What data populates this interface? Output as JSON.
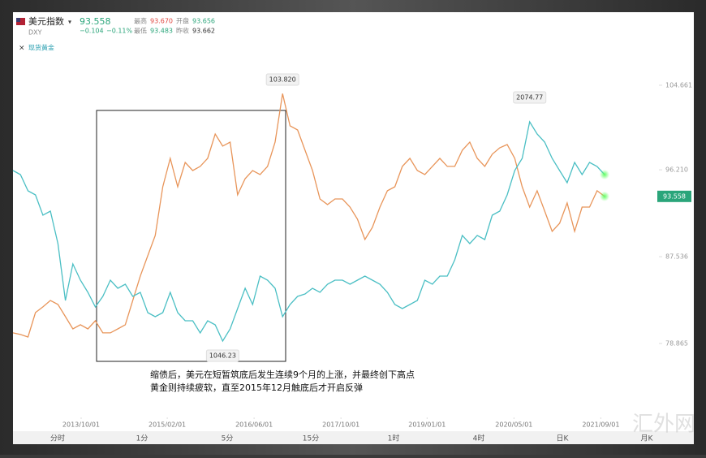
{
  "header": {
    "symbol_code": "DXY",
    "price": "93.558",
    "change": "−0.104",
    "change_pct": "−0.11%",
    "high_label": "最高",
    "high": "93.670",
    "open_label": "开盘",
    "open": "93.656",
    "low_label": "最低",
    "low": "93.483",
    "prev_label": "昨收",
    "prev": "93.662"
  },
  "chart_data": {
    "type": "line",
    "xlim": [
      0,
      79
    ],
    "xticks": [
      {
        "value": 9.1,
        "label": "2013/10/01"
      },
      {
        "value": 20.6,
        "label": "2015/02/01"
      },
      {
        "value": 32.2,
        "label": "2016/06/01"
      },
      {
        "value": 43.8,
        "label": "2017/10/01"
      },
      {
        "value": 55.3,
        "label": "2019/01/01"
      },
      {
        "value": 66.9,
        "label": "2020/05/01"
      },
      {
        "value": 78.5,
        "label": "2021/09/01"
      }
    ],
    "ylim": [
      71.8,
      105.47
    ],
    "yticks": [
      104.661,
      {
        "value": 96.21,
        "label": "96.210"
      },
      87.536,
      78.865
    ],
    "y2lim": [
      703.4,
      2284.3
    ],
    "series": [
      {
        "name": "美元指数",
        "color": "#e8955a",
        "values": [
          79.92,
          79.76,
          79.51,
          81.95,
          82.52,
          83.16,
          82.76,
          81.54,
          80.32,
          80.73,
          80.32,
          81.13,
          79.92,
          79.92,
          80.32,
          80.73,
          83.16,
          85.6,
          87.63,
          89.65,
          94.52,
          97.36,
          94.52,
          96.95,
          96.14,
          96.55,
          97.36,
          99.79,
          98.58,
          98.98,
          93.71,
          95.33,
          96.14,
          95.74,
          96.55,
          98.98,
          103.82,
          100.6,
          100.2,
          98.17,
          96.14,
          93.3,
          92.74,
          93.3,
          93.3,
          92.49,
          91.28,
          89.25,
          90.46,
          92.49,
          94.12,
          94.52,
          96.55,
          97.36,
          96.14,
          95.74,
          96.55,
          97.36,
          96.55,
          96.55,
          98.17,
          98.98,
          97.36,
          96.55,
          97.77,
          98.41,
          98.74,
          97.36,
          94.52,
          92.49,
          94.12,
          92.09,
          90.06,
          90.87,
          92.9,
          90.06,
          92.49,
          92.49,
          94.12,
          93.558
        ]
      },
      {
        "name": "现货黄金",
        "color": "#4bbfc4",
        "axis": "y2",
        "values": [
          1846.2,
          1827.2,
          1751,
          1732,
          1636.7,
          1655.8,
          1503.4,
          1236.8,
          1408.2,
          1332,
          1274.9,
          1206.3,
          1255.8,
          1332,
          1293.9,
          1313,
          1255.8,
          1274.9,
          1179.7,
          1160.6,
          1179.7,
          1274.9,
          1179.7,
          1141.6,
          1141.6,
          1084.4,
          1141.6,
          1122.5,
          1046.23,
          1103.5,
          1198.7,
          1293.9,
          1217.8,
          1351.1,
          1332,
          1293.9,
          1160.6,
          1217.8,
          1255.8,
          1267.3,
          1293.9,
          1274.9,
          1313,
          1332,
          1332,
          1313,
          1332,
          1351.1,
          1332,
          1313,
          1274.9,
          1217.8,
          1198.7,
          1217.8,
          1236.8,
          1332,
          1313,
          1351.1,
          1351.1,
          1427.2,
          1542,
          1503.4,
          1542,
          1522.5,
          1636.7,
          1655.8,
          1732,
          1846.2,
          1903.4,
          2074.77,
          2017.6,
          1979.5,
          1903.4,
          1846.2,
          1789.1,
          1884.3,
          1827.2,
          1884.3,
          1865.3,
          1827.2
        ]
      }
    ],
    "annotations": [
      "103.820",
      "2074.77",
      "1046.23"
    ],
    "caption": [
      "缩债后，美元在短暂筑底后发生连续9个月的上涨，并最终创下高点",
      "黄金则持续疲软，直至2015年12月触底后才开启反弹"
    ]
  },
  "toolbar": [
    "分时",
    "1分",
    "5分",
    "15分",
    "1时",
    "4时",
    "日K",
    "月K"
  ],
  "watermark": "汇外网"
}
